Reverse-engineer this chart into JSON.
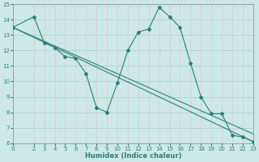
{
  "xlabel": "Humidex (Indice chaleur)",
  "xlim": [
    0,
    23
  ],
  "ylim": [
    6,
    15
  ],
  "xticks": [
    0,
    2,
    3,
    4,
    5,
    6,
    7,
    8,
    9,
    10,
    11,
    12,
    13,
    14,
    15,
    16,
    17,
    18,
    19,
    20,
    21,
    22,
    23
  ],
  "yticks": [
    6,
    7,
    8,
    9,
    10,
    11,
    12,
    13,
    14,
    15
  ],
  "bg_color": "#cce9e8",
  "hgrid_color": "#aad4d2",
  "vgrid_color": "#e8c8c8",
  "line_color": "#2d7d78",
  "line1_x": [
    0,
    2,
    3,
    4,
    5,
    6,
    7,
    8,
    9,
    10,
    11,
    12,
    13,
    14,
    15,
    16,
    17,
    18,
    19,
    20,
    21,
    22,
    23
  ],
  "line1_y": [
    13.5,
    14.2,
    12.5,
    12.2,
    11.6,
    11.5,
    10.5,
    8.3,
    8.0,
    9.9,
    12.0,
    13.2,
    13.4,
    14.8,
    14.2,
    13.5,
    11.2,
    9.0,
    7.9,
    7.9,
    6.5,
    6.4,
    6.1
  ],
  "line2_x": [
    0,
    23
  ],
  "line2_y": [
    13.5,
    6.1
  ],
  "line3_x": [
    0,
    23
  ],
  "line3_y": [
    13.5,
    6.6
  ]
}
